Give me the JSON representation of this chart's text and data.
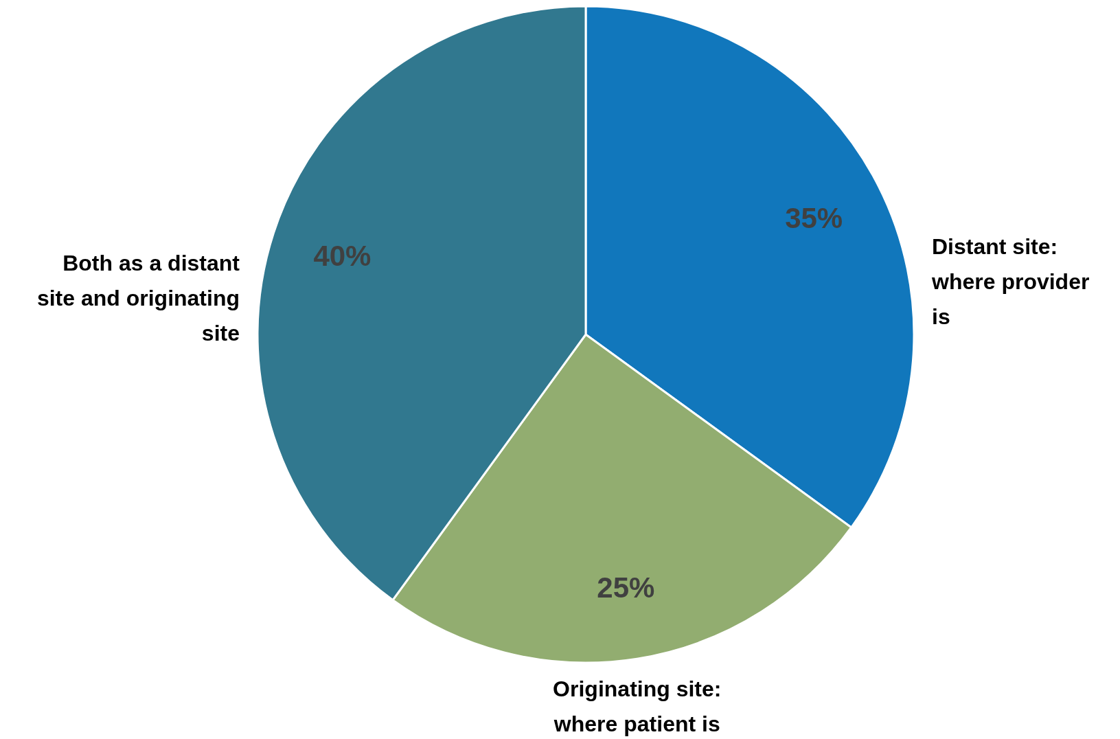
{
  "chart_data": {
    "type": "pie",
    "categories": [
      "Distant site: where provider is",
      "Originating site: where patient is",
      "Both as a distant site and originating site"
    ],
    "values": [
      35,
      25,
      40
    ],
    "colors": [
      "#1177bc",
      "#92ad70",
      "#31788f"
    ],
    "value_labels": [
      "35%",
      "25%",
      "40%"
    ]
  }
}
